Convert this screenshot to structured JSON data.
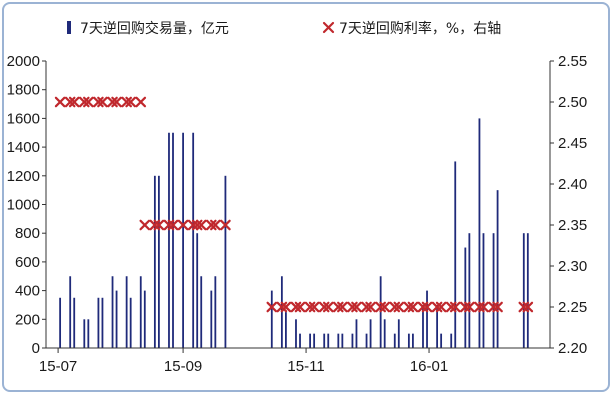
{
  "chart_data": {
    "type": "bar+scatter",
    "x_tick_labels": [
      "15-07",
      "15-09",
      "15-11",
      "16-01"
    ],
    "y_left": {
      "ticks": [
        "0",
        "200",
        "400",
        "600",
        "800",
        "1000",
        "1200",
        "1400",
        "1600",
        "1800",
        "2000"
      ],
      "lim": [
        0,
        2000
      ]
    },
    "y_right": {
      "ticks": [
        "2.20",
        "2.25",
        "2.30",
        "2.35",
        "2.40",
        "2.45",
        "2.50",
        "2.55"
      ],
      "lim": [
        2.2,
        2.55
      ]
    },
    "legend_position": "top",
    "series": [
      {
        "name": "7天逆回购交易量，亿元",
        "kind": "bar",
        "axis": "left",
        "color": "#1f2a7a",
        "x": [
          "2015-07-02",
          "2015-07-07",
          "2015-07-09",
          "2015-07-14",
          "2015-07-16",
          "2015-07-21",
          "2015-07-23",
          "2015-07-28",
          "2015-07-30",
          "2015-08-04",
          "2015-08-06",
          "2015-08-11",
          "2015-08-13",
          "2015-08-18",
          "2015-08-20",
          "2015-08-25",
          "2015-08-27",
          "2015-09-01",
          "2015-09-06",
          "2015-09-08",
          "2015-09-10",
          "2015-09-15",
          "2015-09-17",
          "2015-09-22",
          "2015-10-15",
          "2015-10-20",
          "2015-10-22",
          "2015-10-27",
          "2015-10-29",
          "2015-11-03",
          "2015-11-05",
          "2015-11-10",
          "2015-11-12",
          "2015-11-17",
          "2015-11-19",
          "2015-11-24",
          "2015-11-26",
          "2015-12-01",
          "2015-12-03",
          "2015-12-08",
          "2015-12-10",
          "2015-12-15",
          "2015-12-17",
          "2015-12-22",
          "2015-12-24",
          "2015-12-29",
          "2015-12-31",
          "2016-01-05",
          "2016-01-07",
          "2016-01-12",
          "2016-01-14",
          "2016-01-19",
          "2016-01-21",
          "2016-01-26",
          "2016-01-28",
          "2016-02-02",
          "2016-02-04",
          "2016-02-17",
          "2016-02-19"
        ],
        "values": [
          350,
          500,
          350,
          200,
          200,
          350,
          350,
          500,
          400,
          500,
          350,
          500,
          400,
          1200,
          1200,
          1500,
          1500,
          1500,
          1500,
          800,
          500,
          400,
          500,
          1200,
          400,
          500,
          250,
          200,
          100,
          100,
          100,
          100,
          100,
          100,
          100,
          100,
          200,
          100,
          200,
          500,
          200,
          100,
          200,
          100,
          100,
          300,
          400,
          300,
          100,
          100,
          1300,
          700,
          800,
          1600,
          800,
          800,
          1100,
          800,
          800
        ]
      },
      {
        "name": "7天逆回购利率，%，右轴",
        "kind": "scatter",
        "axis": "right",
        "color": "#c0282d",
        "marker": "x",
        "x": [
          "2015-07-02",
          "2015-07-07",
          "2015-07-09",
          "2015-07-14",
          "2015-07-16",
          "2015-07-21",
          "2015-07-23",
          "2015-07-28",
          "2015-07-30",
          "2015-08-04",
          "2015-08-06",
          "2015-08-11",
          "2015-08-13",
          "2015-08-18",
          "2015-08-20",
          "2015-08-25",
          "2015-08-27",
          "2015-09-01",
          "2015-09-06",
          "2015-09-08",
          "2015-09-10",
          "2015-09-15",
          "2015-09-17",
          "2015-09-22",
          "2015-10-15",
          "2015-10-20",
          "2015-10-22",
          "2015-10-27",
          "2015-10-29",
          "2015-11-03",
          "2015-11-05",
          "2015-11-10",
          "2015-11-12",
          "2015-11-17",
          "2015-11-19",
          "2015-11-24",
          "2015-11-26",
          "2015-12-01",
          "2015-12-03",
          "2015-12-08",
          "2015-12-10",
          "2015-12-15",
          "2015-12-17",
          "2015-12-22",
          "2015-12-24",
          "2015-12-29",
          "2015-12-31",
          "2016-01-05",
          "2016-01-07",
          "2016-01-12",
          "2016-01-14",
          "2016-01-19",
          "2016-01-21",
          "2016-01-26",
          "2016-01-28",
          "2016-02-02",
          "2016-02-04",
          "2016-02-17",
          "2016-02-19"
        ],
        "values": [
          2.5,
          2.5,
          2.5,
          2.5,
          2.5,
          2.5,
          2.5,
          2.5,
          2.5,
          2.5,
          2.5,
          2.5,
          2.35,
          2.35,
          2.35,
          2.35,
          2.35,
          2.35,
          2.35,
          2.35,
          2.35,
          2.35,
          2.35,
          2.35,
          2.25,
          2.25,
          2.25,
          2.25,
          2.25,
          2.25,
          2.25,
          2.25,
          2.25,
          2.25,
          2.25,
          2.25,
          2.25,
          2.25,
          2.25,
          2.25,
          2.25,
          2.25,
          2.25,
          2.25,
          2.25,
          2.25,
          2.25,
          2.25,
          2.25,
          2.25,
          2.25,
          2.25,
          2.25,
          2.25,
          2.25,
          2.25,
          2.25,
          2.25,
          2.25
        ]
      }
    ]
  }
}
